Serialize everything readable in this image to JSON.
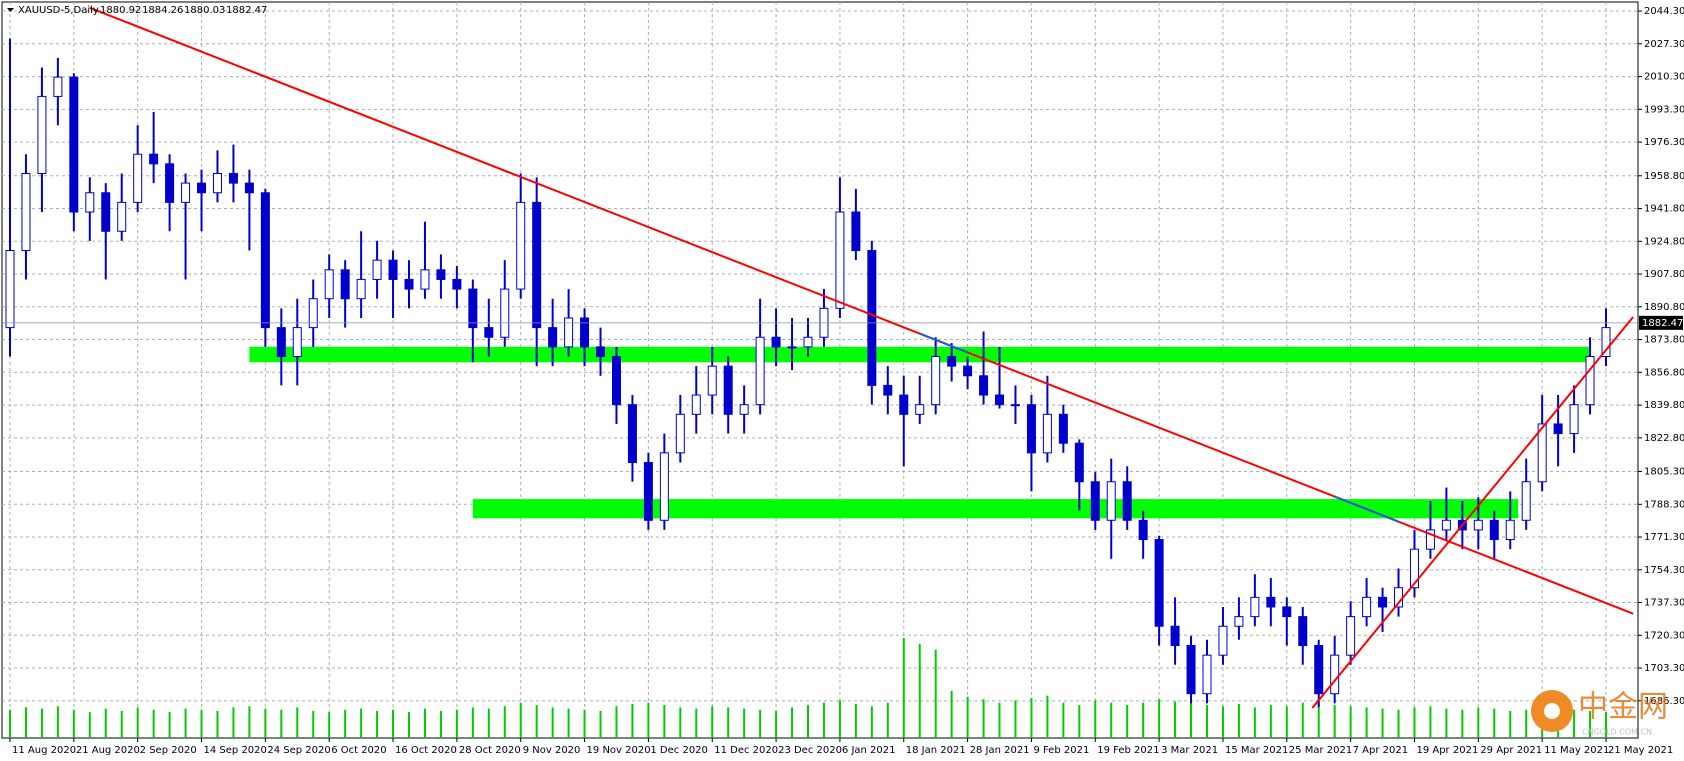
{
  "chart_data": {
    "type": "candlestick",
    "title": "XAUUSD-5,Daily",
    "last_bar": [
      1880.92,
      1884.26,
      1880.03,
      1882.47
    ],
    "current_price": 1882.47,
    "candle_color": "#0000cc",
    "volume_color": "#00cc00",
    "grid": true,
    "ylim": [
      1667,
      2049
    ],
    "yticks": [
      {
        "value": 1686.3,
        "label": "1686.30"
      },
      {
        "value": 1703.3,
        "label": "1703.30"
      },
      {
        "value": 1720.3,
        "label": "1720.30"
      },
      {
        "value": 1737.3,
        "label": "1737.30"
      },
      {
        "value": 1754.3,
        "label": "1754.30"
      },
      {
        "value": 1771.3,
        "label": "1771.30"
      },
      {
        "value": 1788.3,
        "label": "1788.30"
      },
      {
        "value": 1805.3,
        "label": "1805.30"
      },
      {
        "value": 1822.8,
        "label": "1822.80"
      },
      {
        "value": 1839.8,
        "label": "1839.80"
      },
      {
        "value": 1856.8,
        "label": "1856.80"
      },
      {
        "value": 1873.8,
        "label": "1873.80"
      },
      {
        "value": 1890.8,
        "label": "1890.80"
      },
      {
        "value": 1907.8,
        "label": "1907.80"
      },
      {
        "value": 1924.8,
        "label": "1924.80"
      },
      {
        "value": 1941.8,
        "label": "1941.80"
      },
      {
        "value": 1958.8,
        "label": "1958.80"
      },
      {
        "value": 1976.3,
        "label": "1976.30"
      },
      {
        "value": 1993.3,
        "label": "1993.30"
      },
      {
        "value": 2010.3,
        "label": "2010.30"
      },
      {
        "value": 2027.3,
        "label": "2027.30"
      },
      {
        "value": 2044.3,
        "label": "2044.30"
      }
    ],
    "categories": [
      "11 Aug 2020",
      null,
      null,
      null,
      "21 Aug 2020",
      null,
      null,
      null,
      "2 Sep 2020",
      null,
      null,
      null,
      "14 Sep 2020",
      null,
      null,
      null,
      "24 Sep 2020",
      null,
      null,
      null,
      "6 Oct 2020",
      null,
      null,
      null,
      "16 Oct 2020",
      null,
      null,
      null,
      "28 Oct 2020",
      null,
      null,
      null,
      "9 Nov 2020",
      null,
      null,
      null,
      "19 Nov 2020",
      null,
      null,
      null,
      "1 Dec 2020",
      null,
      null,
      null,
      "11 Dec 2020",
      null,
      null,
      null,
      "23 Dec 2020",
      null,
      null,
      null,
      "6 Jan 2021",
      null,
      null,
      null,
      "18 Jan 2021",
      null,
      null,
      null,
      "28 Jan 2021",
      null,
      null,
      null,
      "9 Feb 2021",
      null,
      null,
      null,
      "19 Feb 2021",
      null,
      null,
      null,
      "3 Mar 2021",
      null,
      null,
      null,
      "15 Mar 2021",
      null,
      null,
      null,
      "25 Mar 2021",
      null,
      null,
      null,
      "7 Apr 2021",
      null,
      null,
      null,
      "19 Apr 2021",
      null,
      null,
      null,
      "29 Apr 2021",
      null,
      null,
      null,
      "11 May 2021",
      null,
      null,
      null,
      "21 May 2021"
    ],
    "ohlc": [
      [
        1880,
        2030,
        1865,
        1920
      ],
      [
        1920,
        1970,
        1905,
        1960
      ],
      [
        1960,
        2015,
        1940,
        2000
      ],
      [
        2000,
        2020,
        1985,
        2010
      ],
      [
        2010,
        2012,
        1930,
        1940
      ],
      [
        1940,
        1958,
        1925,
        1950
      ],
      [
        1950,
        1955,
        1905,
        1930
      ],
      [
        1930,
        1960,
        1925,
        1945
      ],
      [
        1945,
        1985,
        1940,
        1970
      ],
      [
        1970,
        1992,
        1955,
        1965
      ],
      [
        1965,
        1970,
        1930,
        1945
      ],
      [
        1945,
        1960,
        1905,
        1955
      ],
      [
        1955,
        1962,
        1930,
        1950
      ],
      [
        1950,
        1972,
        1945,
        1960
      ],
      [
        1960,
        1975,
        1945,
        1955
      ],
      [
        1955,
        1962,
        1920,
        1950
      ],
      [
        1950,
        1952,
        1870,
        1880
      ],
      [
        1880,
        1890,
        1850,
        1865
      ],
      [
        1865,
        1895,
        1850,
        1880
      ],
      [
        1880,
        1905,
        1870,
        1895
      ],
      [
        1895,
        1918,
        1885,
        1910
      ],
      [
        1910,
        1915,
        1880,
        1895
      ],
      [
        1895,
        1930,
        1885,
        1905
      ],
      [
        1905,
        1925,
        1895,
        1915
      ],
      [
        1915,
        1920,
        1885,
        1905
      ],
      [
        1905,
        1915,
        1890,
        1900
      ],
      [
        1900,
        1935,
        1895,
        1910
      ],
      [
        1910,
        1918,
        1895,
        1905
      ],
      [
        1905,
        1912,
        1890,
        1900
      ],
      [
        1900,
        1905,
        1862,
        1880
      ],
      [
        1880,
        1895,
        1865,
        1875
      ],
      [
        1875,
        1915,
        1870,
        1900
      ],
      [
        1900,
        1960,
        1895,
        1945
      ],
      [
        1945,
        1958,
        1860,
        1880
      ],
      [
        1880,
        1895,
        1860,
        1870
      ],
      [
        1870,
        1900,
        1865,
        1885
      ],
      [
        1885,
        1890,
        1860,
        1870
      ],
      [
        1870,
        1880,
        1855,
        1865
      ],
      [
        1865,
        1870,
        1830,
        1840
      ],
      [
        1840,
        1845,
        1800,
        1810
      ],
      [
        1810,
        1815,
        1775,
        1780
      ],
      [
        1780,
        1825,
        1775,
        1815
      ],
      [
        1815,
        1845,
        1810,
        1835
      ],
      [
        1835,
        1860,
        1825,
        1845
      ],
      [
        1845,
        1870,
        1835,
        1860
      ],
      [
        1860,
        1865,
        1825,
        1835
      ],
      [
        1835,
        1850,
        1825,
        1840
      ],
      [
        1840,
        1895,
        1835,
        1875
      ],
      [
        1875,
        1890,
        1860,
        1870
      ],
      [
        1870,
        1885,
        1858,
        1870
      ],
      [
        1870,
        1885,
        1865,
        1875
      ],
      [
        1875,
        1900,
        1870,
        1890
      ],
      [
        1890,
        1958,
        1885,
        1940
      ],
      [
        1940,
        1952,
        1915,
        1920
      ],
      [
        1920,
        1925,
        1840,
        1850
      ],
      [
        1850,
        1860,
        1835,
        1845
      ],
      [
        1845,
        1855,
        1808,
        1835
      ],
      [
        1835,
        1855,
        1830,
        1840
      ],
      [
        1840,
        1875,
        1835,
        1865
      ],
      [
        1865,
        1872,
        1852,
        1860
      ],
      [
        1860,
        1865,
        1848,
        1855
      ],
      [
        1855,
        1878,
        1840,
        1845
      ],
      [
        1845,
        1870,
        1838,
        1840
      ],
      [
        1840,
        1850,
        1830,
        1840
      ],
      [
        1840,
        1845,
        1795,
        1815
      ],
      [
        1815,
        1855,
        1810,
        1835
      ],
      [
        1835,
        1840,
        1815,
        1820
      ],
      [
        1820,
        1822,
        1785,
        1800
      ],
      [
        1800,
        1805,
        1775,
        1780
      ],
      [
        1780,
        1812,
        1760,
        1800
      ],
      [
        1800,
        1808,
        1775,
        1780
      ],
      [
        1780,
        1785,
        1760,
        1770
      ],
      [
        1770,
        1772,
        1715,
        1725
      ],
      [
        1725,
        1740,
        1705,
        1715
      ],
      [
        1715,
        1720,
        1685,
        1690
      ],
      [
        1690,
        1718,
        1685,
        1710
      ],
      [
        1710,
        1735,
        1705,
        1725
      ],
      [
        1725,
        1740,
        1718,
        1730
      ],
      [
        1730,
        1752,
        1725,
        1740
      ],
      [
        1740,
        1750,
        1725,
        1735
      ],
      [
        1735,
        1740,
        1715,
        1730
      ],
      [
        1730,
        1735,
        1705,
        1715
      ],
      [
        1715,
        1718,
        1683,
        1690
      ],
      [
        1690,
        1720,
        1685,
        1710
      ],
      [
        1710,
        1738,
        1705,
        1730
      ],
      [
        1730,
        1750,
        1725,
        1740
      ],
      [
        1740,
        1745,
        1722,
        1735
      ],
      [
        1735,
        1755,
        1730,
        1745
      ],
      [
        1745,
        1775,
        1740,
        1765
      ],
      [
        1765,
        1790,
        1760,
        1775
      ],
      [
        1775,
        1797,
        1770,
        1780
      ],
      [
        1780,
        1790,
        1765,
        1775
      ],
      [
        1775,
        1792,
        1765,
        1780
      ],
      [
        1780,
        1785,
        1760,
        1770
      ],
      [
        1770,
        1795,
        1765,
        1780
      ],
      [
        1780,
        1812,
        1775,
        1800
      ],
      [
        1800,
        1845,
        1795,
        1830
      ],
      [
        1830,
        1845,
        1808,
        1825
      ],
      [
        1825,
        1850,
        1815,
        1840
      ],
      [
        1840,
        1875,
        1835,
        1865
      ],
      [
        1865,
        1890,
        1860,
        1880
      ]
    ],
    "volume": [
      24,
      26,
      25,
      27,
      24,
      22,
      25,
      23,
      26,
      24,
      22,
      25,
      24,
      23,
      26,
      27,
      25,
      24,
      26,
      23,
      22,
      24,
      25,
      23,
      24,
      22,
      25,
      23,
      24,
      26,
      25,
      27,
      30,
      28,
      26,
      25,
      24,
      23,
      27,
      29,
      30,
      28,
      26,
      25,
      27,
      26,
      25,
      24,
      23,
      26,
      28,
      30,
      32,
      29,
      27,
      30,
      85,
      80,
      75,
      40,
      35,
      33,
      30,
      32,
      34,
      36,
      30,
      28,
      32,
      30,
      28,
      30,
      33,
      31,
      30,
      28,
      27,
      29,
      26,
      28,
      27,
      30,
      31,
      28,
      27,
      26,
      25,
      24,
      26,
      27,
      25,
      24,
      26,
      25,
      23,
      24,
      25,
      26,
      24,
      23,
      22
    ],
    "zones": [
      {
        "color": "#00ff00",
        "from": 15,
        "to": 99,
        "low": 1862,
        "high": 1870
      },
      {
        "color": "#00ff00",
        "from": 29,
        "to": 94.5,
        "low": 1781,
        "high": 1791
      }
    ],
    "trendlines": [
      {
        "color": "#ff0000",
        "start": [
          5,
          2046
        ],
        "end": [
          101.7,
          1731.5
        ]
      },
      {
        "color": "#ff0000",
        "start": [
          81.6,
          1682.6
        ],
        "end": [
          101.7,
          1885.5
        ]
      },
      {
        "color": "#1e5ae6",
        "start": [
          57,
          1876.9
        ],
        "end": [
          60,
          1867.1
        ]
      },
      {
        "color": "#1e5ae6",
        "start": [
          83,
          1792.3
        ],
        "end": [
          87,
          1779.3
        ]
      }
    ],
    "watermark": "中金网",
    "watermark_sub": "CNGOLD.COM.CN"
  }
}
